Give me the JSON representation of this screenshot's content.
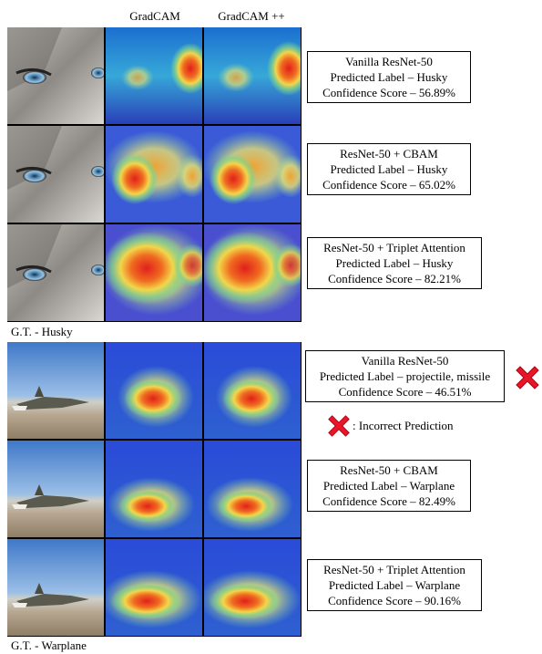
{
  "headers": {
    "col2": "GradCAM",
    "col3": "GradCAM ++"
  },
  "husky": {
    "gt": "G.T. - Husky",
    "rows": [
      {
        "model": "Vanilla ResNet-50",
        "pred": "Predicted Label – Husky",
        "conf": "Confidence Score – 56.89%"
      },
      {
        "model": "ResNet-50 + CBAM",
        "pred": "Predicted Label – Husky",
        "conf": "Confidence Score – 65.02%"
      },
      {
        "model": "ResNet-50 + Triplet Attention",
        "pred": "Predicted Label – Husky",
        "conf": "Confidence Score – 82.21%"
      }
    ]
  },
  "warplane": {
    "gt": "G.T. - Warplane",
    "rows": [
      {
        "model": "Vanilla ResNet-50",
        "pred": "Predicted Label – projectile, missile",
        "conf": "Confidence Score – 46.51%"
      },
      {
        "model": "ResNet-50 + CBAM",
        "pred": "Predicted Label – Warplane",
        "conf": "Confidence Score – 82.49%"
      },
      {
        "model": "ResNet-50 + Triplet Attention",
        "pred": "Predicted Label – Warplane",
        "conf": "Confidence Score – 90.16%"
      }
    ]
  },
  "legend": {
    "text": ": Incorrect Prediction",
    "icon": "red-x-icon",
    "color": "#e8162a"
  }
}
